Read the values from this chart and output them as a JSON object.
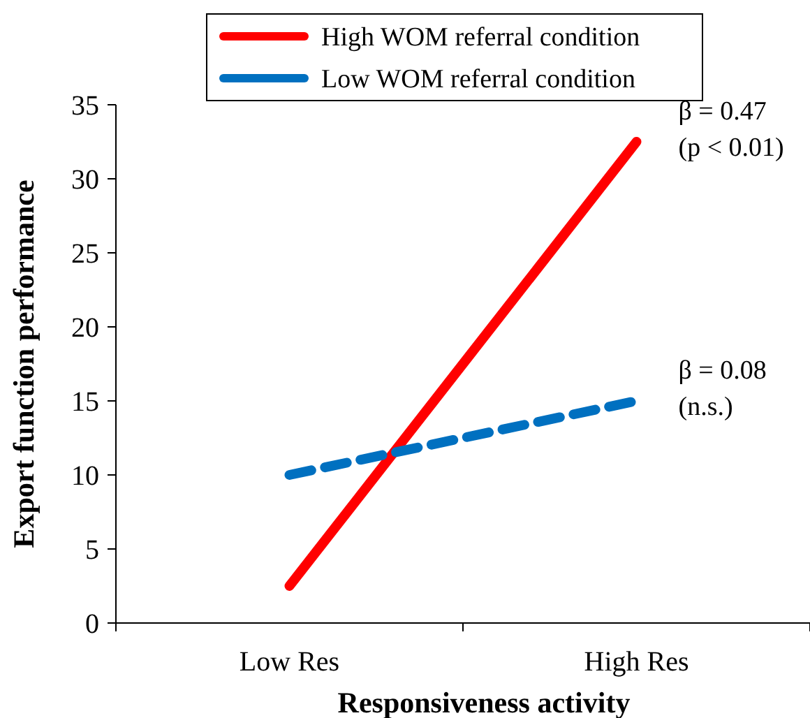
{
  "chart_data": {
    "type": "line",
    "xlabel": "Responsiveness activity",
    "ylabel": "Export function performance",
    "categories": [
      "Low Res",
      "High Res"
    ],
    "series": [
      {
        "name": "High WOM referral condition",
        "color": "#ff0000",
        "values": [
          2.5,
          32.5
        ],
        "line_style": "solid"
      },
      {
        "name": "Low WOM referral condition",
        "color": "#0070c0",
        "values": [
          10,
          15
        ],
        "line_style": "dashed"
      }
    ],
    "ylim": [
      0,
      35
    ],
    "yticks": [
      0,
      5,
      10,
      15,
      20,
      25,
      30,
      35
    ],
    "grid": false,
    "legend": "top",
    "marker": "none",
    "annotations": [
      {
        "text": "β = 0.47\n(p < 0.01)",
        "x": "High Res",
        "y": 32.5
      },
      {
        "text": "β = 0.08\n(n.s.)",
        "x": "High Res",
        "y": 15
      }
    ]
  }
}
